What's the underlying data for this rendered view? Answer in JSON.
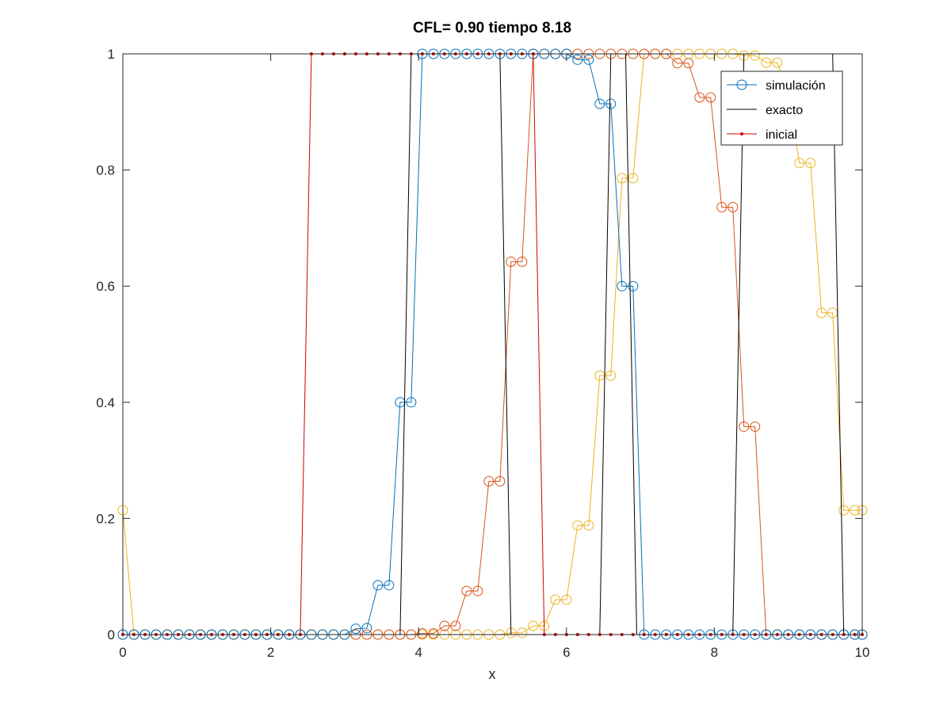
{
  "chart_data": {
    "type": "line",
    "title": "CFL= 0.90   tiempo 8.18",
    "xlabel": "x",
    "ylabel": "",
    "xlim": [
      0,
      10
    ],
    "ylim": [
      0,
      1
    ],
    "xticks": [
      0,
      2,
      4,
      6,
      8,
      10
    ],
    "yticks": [
      0,
      0.2,
      0.4,
      0.6,
      0.8,
      1
    ],
    "xtick_labels": [
      "0",
      "2",
      "4",
      "6",
      "8",
      "10"
    ],
    "ytick_labels": [
      "0",
      "0.2",
      "0.4",
      "0.6",
      "0.8",
      "1"
    ],
    "grid": false,
    "box": true,
    "legend_position": "top-right",
    "legend": [
      {
        "label": "simulación",
        "style": "line-circle",
        "color": "#0072bd"
      },
      {
        "label": "exacto",
        "style": "line",
        "color": "#000000"
      },
      {
        "label": "inicial",
        "style": "line-dot",
        "color": "#d00000"
      }
    ],
    "series": [
      {
        "name": "simulación",
        "role": "simulation",
        "color": "#0072bd",
        "marker": "circle",
        "x": [
          0,
          0.15,
          0.3,
          0.45,
          0.6,
          0.75,
          0.9,
          1.05,
          1.2,
          1.35,
          1.5,
          1.65,
          1.8,
          1.95,
          2.1,
          2.25,
          2.4,
          2.55,
          2.7,
          2.85,
          3.0,
          3.15,
          3.3,
          3.45,
          3.6,
          3.75,
          3.9,
          4.05,
          4.2,
          4.35,
          4.5,
          4.65,
          4.8,
          4.95,
          5.1,
          5.25,
          5.4,
          5.55,
          5.7,
          5.85,
          6.0,
          6.15,
          6.3,
          6.45,
          6.6,
          6.75,
          6.9,
          7.05,
          7.2,
          7.35,
          7.5,
          7.65,
          7.8,
          7.95,
          8.1,
          8.25,
          8.4,
          8.55,
          8.7,
          8.85,
          9.0,
          9.15,
          9.3,
          9.45,
          9.6,
          9.75,
          9.9,
          10.0
        ],
        "y": [
          0,
          0,
          0,
          0,
          0,
          0,
          0,
          0,
          0,
          0,
          0,
          0,
          0,
          0,
          0,
          0,
          0,
          0,
          0,
          0,
          0,
          0.01,
          0.011,
          0.085,
          0.085,
          0.4,
          0.4,
          1,
          1,
          1,
          1,
          1,
          1,
          1,
          1,
          1,
          1,
          1,
          1,
          1,
          1,
          0.99,
          0.99,
          0.914,
          0.914,
          0.6,
          0.6,
          0,
          0,
          0,
          0,
          0,
          0,
          0,
          0,
          0,
          0,
          0,
          0,
          0,
          0,
          0,
          0,
          0,
          0,
          0,
          0,
          0
        ]
      },
      {
        "name": "",
        "role": "simulation-2",
        "color": "#d95319",
        "marker": "circle",
        "x": [
          0,
          0.15,
          0.3,
          0.45,
          0.6,
          0.75,
          0.9,
          1.05,
          1.2,
          1.35,
          1.5,
          1.65,
          1.8,
          1.95,
          2.1,
          2.25,
          2.4,
          2.55,
          2.7,
          2.85,
          3.0,
          3.15,
          3.3,
          3.45,
          3.6,
          3.75,
          3.9,
          4.05,
          4.2,
          4.35,
          4.5,
          4.65,
          4.8,
          4.95,
          5.1,
          5.25,
          5.4,
          5.55,
          5.7,
          5.85,
          6.0,
          6.15,
          6.3,
          6.45,
          6.6,
          6.75,
          6.9,
          7.05,
          7.2,
          7.35,
          7.5,
          7.65,
          7.8,
          7.95,
          8.1,
          8.25,
          8.4,
          8.55,
          8.7,
          8.85,
          9.0,
          9.15,
          9.3,
          9.45,
          9.6,
          9.75,
          9.9,
          10.0
        ],
        "y": [
          0,
          0,
          0,
          0,
          0,
          0,
          0,
          0,
          0,
          0,
          0,
          0,
          0,
          0,
          0,
          0,
          0,
          0,
          0,
          0,
          0,
          0,
          0,
          0,
          0,
          0,
          0,
          0.002,
          0.002,
          0.015,
          0.015,
          0.075,
          0.075,
          0.264,
          0.264,
          0.642,
          0.642,
          1,
          1,
          1,
          1,
          1,
          1,
          1,
          1,
          1,
          1,
          1,
          1,
          1,
          0.984,
          0.984,
          0.925,
          0.925,
          0.736,
          0.736,
          0.358,
          0.358,
          0,
          0,
          0,
          0,
          0,
          0,
          0,
          0,
          0,
          0
        ]
      },
      {
        "name": "",
        "role": "simulation-3",
        "color": "#edb120",
        "marker": "circle",
        "x": [
          0,
          0.15,
          0.3,
          0.45,
          0.6,
          0.75,
          0.9,
          1.05,
          1.2,
          1.35,
          1.5,
          1.65,
          1.8,
          1.95,
          2.1,
          2.25,
          2.4,
          2.55,
          2.7,
          2.85,
          3.0,
          3.15,
          3.3,
          3.45,
          3.6,
          3.75,
          3.9,
          4.05,
          4.2,
          4.35,
          4.5,
          4.65,
          4.8,
          4.95,
          5.1,
          5.25,
          5.4,
          5.55,
          5.7,
          5.85,
          6.0,
          6.15,
          6.3,
          6.45,
          6.6,
          6.75,
          6.9,
          7.05,
          7.2,
          7.35,
          7.5,
          7.65,
          7.8,
          7.95,
          8.1,
          8.25,
          8.4,
          8.55,
          8.7,
          8.85,
          9.0,
          9.15,
          9.3,
          9.45,
          9.6,
          9.75,
          9.9,
          10.0
        ],
        "y": [
          0.214,
          0,
          0,
          0,
          0,
          0,
          0,
          0,
          0,
          0,
          0,
          0,
          0,
          0,
          0,
          0,
          0,
          0,
          0,
          0,
          0,
          0,
          0,
          0,
          0,
          0,
          0,
          0,
          0,
          0,
          0,
          0,
          0,
          0,
          0,
          0.003,
          0.003,
          0.015,
          0.015,
          0.06,
          0.06,
          0.188,
          0.188,
          0.446,
          0.446,
          0.786,
          0.786,
          1,
          1,
          1,
          1,
          1,
          1,
          1,
          1,
          1,
          0.997,
          0.997,
          0.985,
          0.985,
          0.936,
          0.812,
          0.812,
          0.554,
          0.554,
          0.214,
          0.214,
          0.214
        ]
      },
      {
        "name": "exacto",
        "role": "exact",
        "color": "#000000",
        "marker": "none",
        "x": [
          0,
          3.75,
          3.9,
          5.1,
          5.25,
          6.45,
          6.6,
          6.8,
          6.95,
          8.25,
          8.4,
          9.6,
          9.75,
          10.0
        ],
        "y": [
          0,
          0,
          1,
          1,
          0,
          0,
          1,
          1,
          0,
          0,
          1,
          1,
          0,
          0
        ]
      },
      {
        "name": "inicial",
        "role": "initial",
        "color": "#d00000",
        "marker": "dot",
        "x": [
          0,
          0.15,
          0.3,
          0.45,
          0.6,
          0.75,
          0.9,
          1.05,
          1.2,
          1.35,
          1.5,
          1.65,
          1.8,
          1.95,
          2.1,
          2.25,
          2.4,
          2.55,
          2.7,
          2.85,
          3.0,
          3.15,
          3.3,
          3.45,
          3.6,
          3.75,
          3.9,
          4.05,
          4.2,
          4.35,
          4.5,
          4.65,
          4.8,
          4.95,
          5.1,
          5.25,
          5.4,
          5.55,
          5.7,
          5.85,
          6.0,
          6.15,
          6.3,
          6.45,
          6.6,
          6.75,
          6.9,
          7.05,
          7.2,
          7.35,
          7.5,
          7.65,
          7.8,
          7.95,
          8.1,
          8.25,
          8.4,
          8.55,
          8.7,
          8.85,
          9.0,
          9.15,
          9.3,
          9.45,
          9.6,
          9.75,
          9.9,
          10.0
        ],
        "y": [
          0,
          0,
          0,
          0,
          0,
          0,
          0,
          0,
          0,
          0,
          0,
          0,
          0,
          0,
          0,
          0,
          0,
          1,
          1,
          1,
          1,
          1,
          1,
          1,
          1,
          1,
          1,
          1,
          1,
          1,
          1,
          1,
          1,
          1,
          1,
          1,
          1,
          1,
          0,
          0,
          0,
          0,
          0,
          0,
          0,
          0,
          0,
          0,
          0,
          0,
          0,
          0,
          0,
          0,
          0,
          0,
          0,
          0,
          0,
          0,
          0,
          0,
          0,
          0,
          0,
          0,
          0,
          0
        ]
      }
    ]
  }
}
